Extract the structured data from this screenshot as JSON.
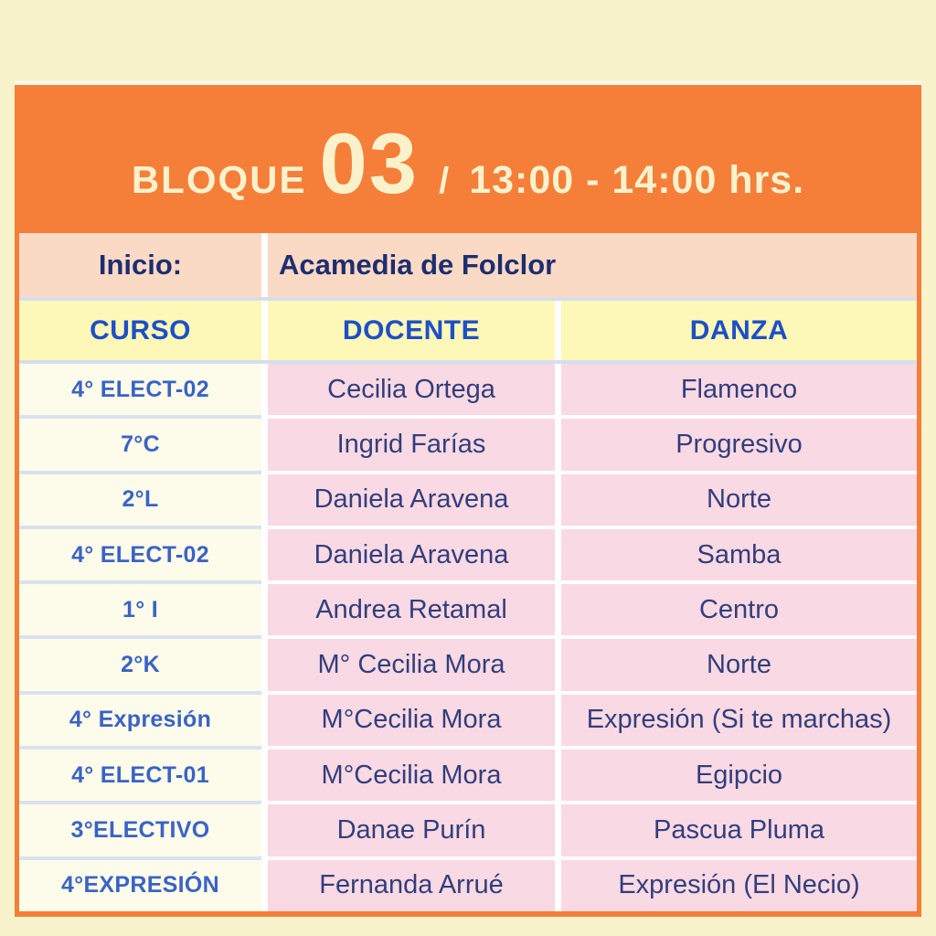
{
  "header": {
    "block_label": "BLOQUE",
    "block_number": "03",
    "separator": "/",
    "time_range": "13:00 - 14:00 hrs."
  },
  "inicio": {
    "label": "Inicio:",
    "value": "Acamedia de Folclor"
  },
  "columns": [
    "CURSO",
    "DOCENTE",
    "DANZA"
  ],
  "rows": [
    {
      "curso": "4° ELECT-02",
      "docente": "Cecilia Ortega",
      "danza": "Flamenco"
    },
    {
      "curso": "7°C",
      "docente": "Ingrid Farías",
      "danza": "Progresivo"
    },
    {
      "curso": "2°L",
      "docente": "Daniela Aravena",
      "danza": "Norte"
    },
    {
      "curso": "4° ELECT-02",
      "docente": "Daniela Aravena",
      "danza": "Samba"
    },
    {
      "curso": "1° I",
      "docente": "Andrea Retamal",
      "danza": "Centro"
    },
    {
      "curso": "2°K",
      "docente": "M° Cecilia Mora",
      "danza": "Norte"
    },
    {
      "curso": "4° Expresión",
      "docente": "M°Cecilia Mora",
      "danza": "Expresión (Si te marchas)"
    },
    {
      "curso": "4° ELECT-01",
      "docente": "M°Cecilia Mora",
      "danza": "Egipcio"
    },
    {
      "curso": "3°ELECTIVO",
      "docente": "Danae Purín",
      "danza": "Pascua Pluma"
    },
    {
      "curso": "4°EXPRESIÓN",
      "docente": "Fernanda Arrué",
      "danza": "Expresión (El Necio)"
    }
  ],
  "colors": {
    "page_background": "#f8f3cb",
    "accent_orange": "#f57e39",
    "header_text_cream": "#fbf2cc",
    "peach_row": "#fbdac5",
    "column_header_yellow": "#fdf8b7",
    "curso_cell_cream": "#fdfbe9",
    "data_cell_pink": "#f9d9e3",
    "royal_blue_text": "#1d4fc6",
    "curso_blue_text": "#3a63c5",
    "navy_text": "#323e7c",
    "navy_dark_text": "#1e2e70",
    "separator_blue": "#d5deee"
  }
}
